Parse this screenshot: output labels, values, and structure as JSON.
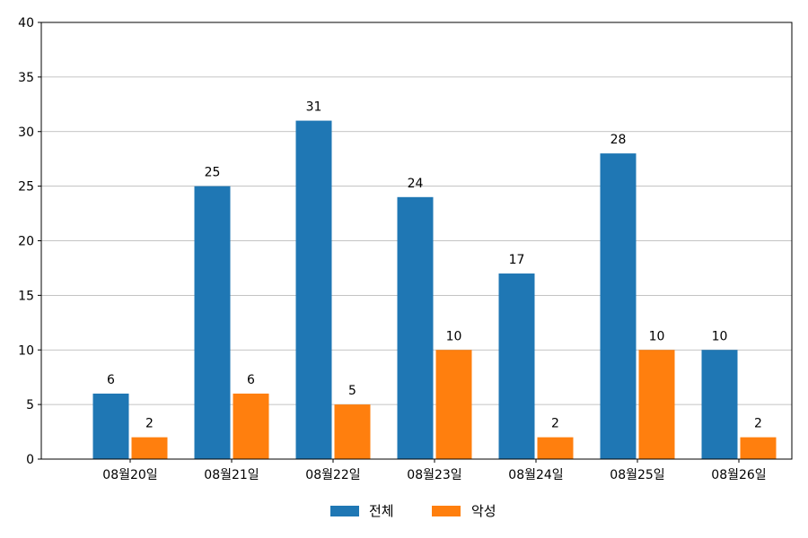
{
  "chart_data": {
    "type": "bar",
    "categories": [
      "08월20일",
      "08월21일",
      "08월22일",
      "08월23일",
      "08월24일",
      "08월25일",
      "08월26일"
    ],
    "series": [
      {
        "name": "전체",
        "values": [
          6,
          25,
          31,
          24,
          17,
          28,
          10
        ],
        "color": "#1f77b4"
      },
      {
        "name": "악성",
        "values": [
          2,
          6,
          5,
          10,
          2,
          10,
          2
        ],
        "color": "#ff7f0e"
      }
    ],
    "ylim": [
      0,
      40
    ],
    "yticks": [
      0,
      5,
      10,
      15,
      20,
      25,
      30,
      35,
      40
    ],
    "grid": "horizontal",
    "legend_position": "bottom-center",
    "data_labels": true
  }
}
